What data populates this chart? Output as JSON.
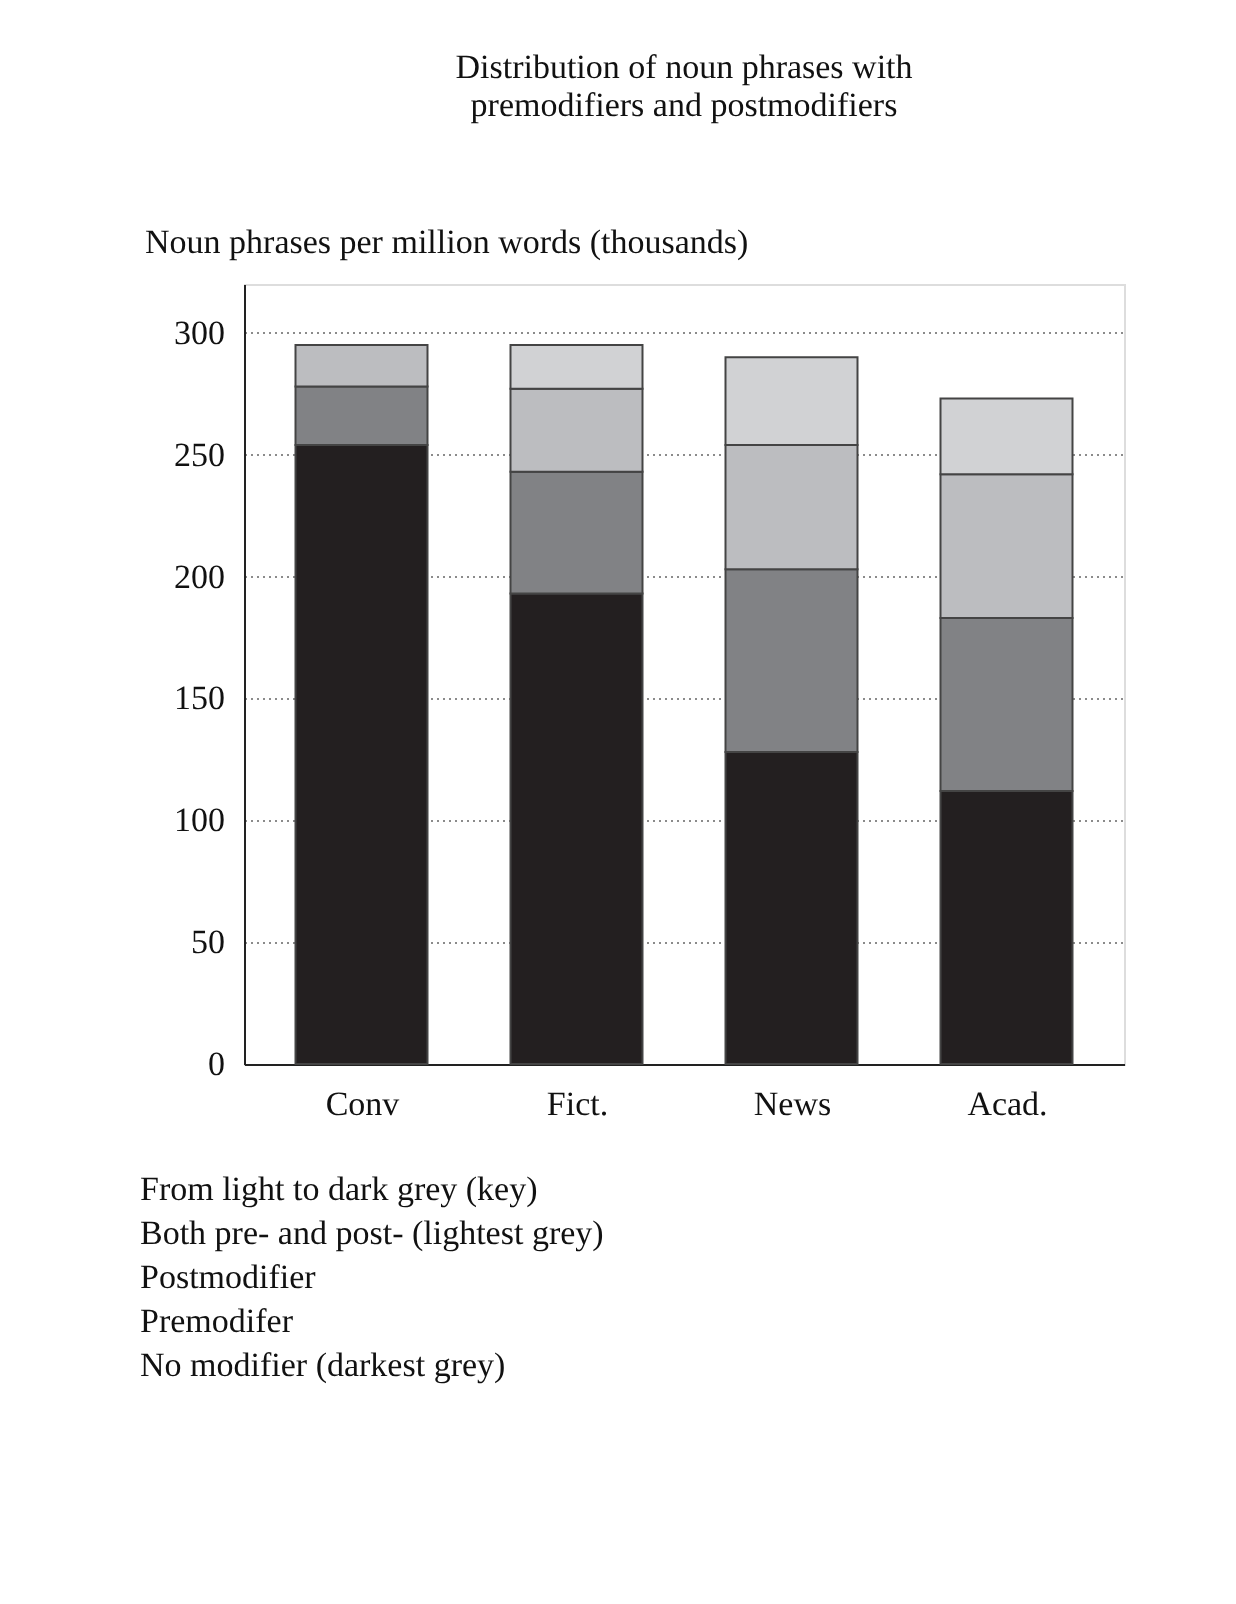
{
  "chart_data": {
    "type": "bar",
    "title": "Distribution of noun phrases with\npremodifiers and postmodifiers",
    "ylabel": "Noun phrases per million words (thousands)",
    "categories": [
      "Conv",
      "Fict.",
      "News",
      "Acad."
    ],
    "stacked": true,
    "series": [
      {
        "color": "#231f20",
        "values": [
          254,
          193,
          128,
          112
        ]
      },
      {
        "color": "#818285",
        "values": [
          24,
          50,
          75,
          71
        ]
      },
      {
        "color": "#bcbdc0",
        "values": [
          17,
          34,
          51,
          59
        ]
      },
      {
        "color": "#d1d2d4",
        "values": [
          null,
          18,
          36,
          31
        ]
      }
    ],
    "ylim": [
      0,
      320
    ],
    "yticks": [
      0,
      50,
      100,
      150,
      200,
      250,
      300
    ],
    "grid": "y",
    "annotations": [
      "From light to dark grey (key)",
      "Both pre- and post- (lightest grey)",
      "Postmodifier",
      "Premodifer",
      "No modifier (darkest grey)"
    ]
  }
}
